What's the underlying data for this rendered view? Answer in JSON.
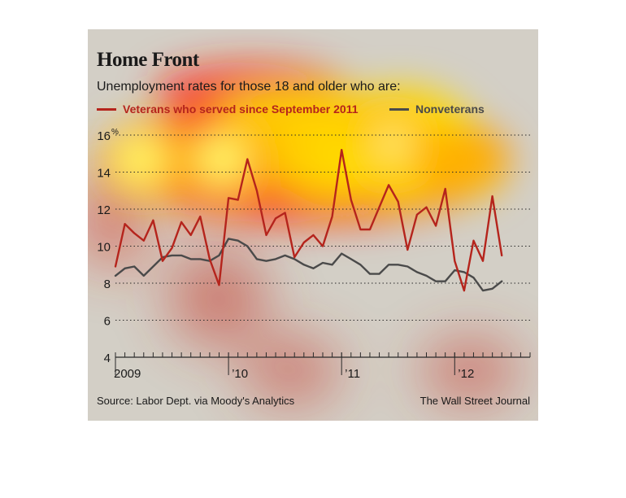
{
  "header": {
    "title": "Home Front",
    "subtitle": "Unemployment rates for those 18 and older who are:"
  },
  "footer": {
    "source": "Source: Labor Dept. via Moody's Analytics",
    "credit": "The Wall Street Journal"
  },
  "colors": {
    "veterans": "#b5241c",
    "nonveterans": "#4a4a4a",
    "background": "#d3cfc6",
    "grid": "#2a2a2a"
  },
  "chart_data": {
    "type": "line",
    "title": "Home Front",
    "subtitle": "Unemployment rates for those 18 and older who are:",
    "ylim": [
      4,
      16
    ],
    "yticks": [
      "4",
      "6",
      "8",
      "10",
      "12",
      "14",
      "16"
    ],
    "y_unit_label": "%",
    "x_start": "2009-01",
    "x_end": "2012-09",
    "xtick_labels": [
      {
        "label": "2009",
        "month": "2009-01"
      },
      {
        "label": "’10",
        "month": "2010-01"
      },
      {
        "label": "’11",
        "month": "2011-01"
      },
      {
        "label": "’12",
        "month": "2012-01"
      }
    ],
    "grid": "horizontal dotted",
    "legend_placement": "top",
    "series": [
      {
        "name": "Veterans who served since September 2011",
        "values": [
          8.9,
          11.2,
          10.7,
          10.3,
          11.4,
          9.2,
          9.9,
          11.3,
          10.6,
          11.6,
          9.3,
          7.9,
          12.6,
          12.5,
          14.7,
          13.0,
          10.6,
          11.5,
          11.8,
          9.4,
          10.2,
          10.6,
          10.0,
          11.6,
          15.2,
          12.5,
          10.9,
          10.9,
          12.1,
          13.3,
          12.4,
          9.8,
          11.7,
          12.1,
          11.1,
          13.1,
          9.2,
          7.6,
          10.3,
          9.2,
          12.7,
          9.5
        ]
      },
      {
        "name": "Nonveterans",
        "values": [
          8.4,
          8.8,
          8.9,
          8.4,
          8.9,
          9.4,
          9.5,
          9.5,
          9.3,
          9.3,
          9.2,
          9.5,
          10.4,
          10.3,
          10.0,
          9.3,
          9.2,
          9.3,
          9.5,
          9.3,
          9.0,
          8.8,
          9.1,
          9.0,
          9.6,
          9.3,
          9.0,
          8.5,
          8.5,
          9.0,
          9.0,
          8.9,
          8.6,
          8.4,
          8.1,
          8.1,
          8.7,
          8.6,
          8.3,
          7.6,
          7.7,
          8.1
        ]
      }
    ]
  }
}
